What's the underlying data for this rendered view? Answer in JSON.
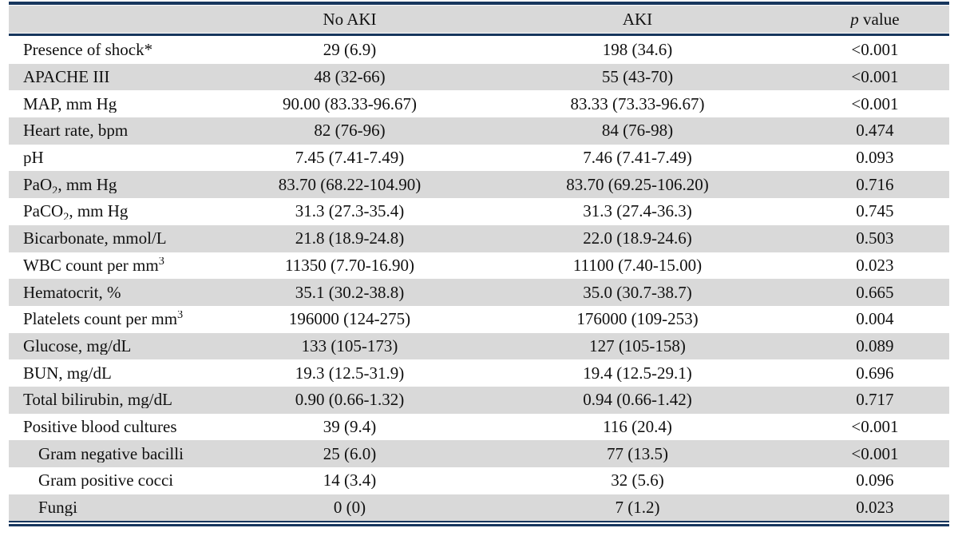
{
  "table": {
    "header": {
      "col1": "",
      "col2": "No AKI",
      "col3": "AKI",
      "col4_italic": "p",
      "col4_rest": " value"
    },
    "rows": [
      {
        "label": "Presence of shock*",
        "no_aki": "29 (6.9)",
        "aki": "198 (34.6)",
        "p": "<0.001",
        "indent": false
      },
      {
        "label": "APACHE III",
        "no_aki": "48 (32-66)",
        "aki": "55 (43-70)",
        "p": "<0.001",
        "indent": false
      },
      {
        "label": "MAP, mm Hg",
        "no_aki": "90.00 (83.33-96.67)",
        "aki": "83.33 (73.33-96.67)",
        "p": "<0.001",
        "indent": false
      },
      {
        "label": "Heart rate, bpm",
        "no_aki": "82 (76-96)",
        "aki": "84 (76-98)",
        "p": "0.474",
        "indent": false
      },
      {
        "label": "pH",
        "no_aki": "7.45 (7.41-7.49)",
        "aki": "7.46 (7.41-7.49)",
        "p": "0.093",
        "indent": false
      },
      {
        "label_parts": [
          {
            "t": "PaO"
          },
          {
            "t": "2",
            "type": "sub"
          },
          {
            "t": ", mm Hg"
          }
        ],
        "no_aki": "83.70 (68.22-104.90)",
        "aki": "83.70 (69.25-106.20)",
        "p": "0.716",
        "indent": false
      },
      {
        "label_parts": [
          {
            "t": "PaCO"
          },
          {
            "t": "2",
            "type": "sub"
          },
          {
            "t": ", mm Hg"
          }
        ],
        "no_aki": "31.3 (27.3-35.4)",
        "aki": "31.3 (27.4-36.3)",
        "p": "0.745",
        "indent": false
      },
      {
        "label": "Bicarbonate, mmol/L",
        "no_aki": "21.8 (18.9-24.8)",
        "aki": "22.0 (18.9-24.6)",
        "p": "0.503",
        "indent": false
      },
      {
        "label_parts": [
          {
            "t": "WBC count per mm"
          },
          {
            "t": "3",
            "type": "sup"
          }
        ],
        "no_aki": "11350 (7.70-16.90)",
        "aki": "11100 (7.40-15.00)",
        "p": "0.023",
        "indent": false
      },
      {
        "label": "Hematocrit, %",
        "no_aki": "35.1 (30.2-38.8)",
        "aki": "35.0 (30.7-38.7)",
        "p": "0.665",
        "indent": false
      },
      {
        "label_parts": [
          {
            "t": "Platelets count per mm"
          },
          {
            "t": "3",
            "type": "sup"
          }
        ],
        "no_aki": "196000 (124-275)",
        "aki": "176000 (109-253)",
        "p": "0.004",
        "indent": false
      },
      {
        "label": "Glucose, mg/dL",
        "no_aki": "133 (105-173)",
        "aki": "127 (105-158)",
        "p": "0.089",
        "indent": false
      },
      {
        "label": "BUN, mg/dL",
        "no_aki": "19.3 (12.5-31.9)",
        "aki": "19.4 (12.5-29.1)",
        "p": "0.696",
        "indent": false
      },
      {
        "label": "Total bilirubin, mg/dL",
        "no_aki": "0.90 (0.66-1.32)",
        "aki": "0.94 (0.66-1.42)",
        "p": "0.717",
        "indent": false
      },
      {
        "label": "Positive blood cultures",
        "no_aki": "39 (9.4)",
        "aki": "116 (20.4)",
        "p": "<0.001",
        "indent": false
      },
      {
        "label": "Gram negative bacilli",
        "no_aki": "25 (6.0)",
        "aki": "77 (13.5)",
        "p": "<0.001",
        "indent": true
      },
      {
        "label": "Gram positive cocci",
        "no_aki": "14 (3.4)",
        "aki": "32 (5.6)",
        "p": "0.096",
        "indent": true
      },
      {
        "label": "Fungi",
        "no_aki": "0 (0)",
        "aki": "7 (1.2)",
        "p": "0.023",
        "indent": true
      }
    ]
  },
  "colors": {
    "stripe_bg": "#d9d9d9",
    "rule_navy": "#17365d",
    "text": "#111111"
  }
}
